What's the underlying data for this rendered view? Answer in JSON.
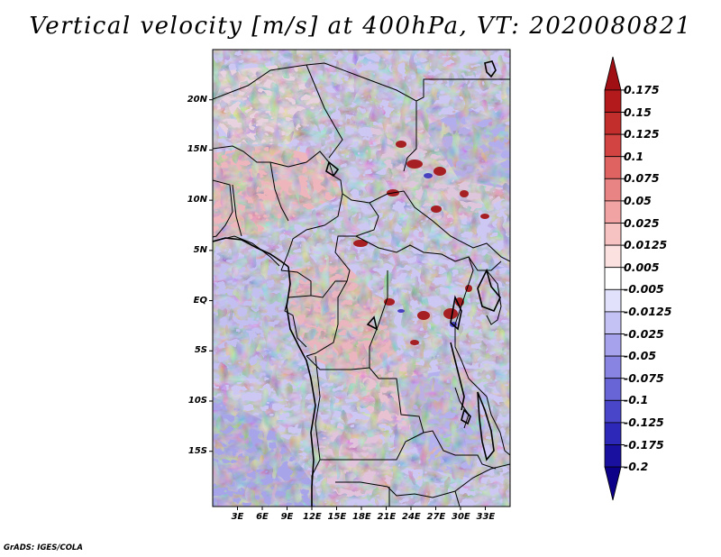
{
  "title": "Vertical velocity [m/s] at 400hPa, VT: 2020080821",
  "footer": "GrADS: IGES/COLA",
  "map": {
    "lon_range": [
      0,
      36
    ],
    "lat_range": [
      -20.5,
      25
    ],
    "lon_tick_labels": [
      "3E",
      "6E",
      "9E",
      "12E",
      "15E",
      "18E",
      "21E",
      "24E",
      "27E",
      "30E",
      "33E"
    ],
    "lon_tick_values": [
      3,
      6,
      9,
      12,
      15,
      18,
      21,
      24,
      27,
      30,
      33
    ],
    "lat_tick_labels": [
      "20N",
      "15N",
      "10N",
      "5N",
      "EQ",
      "5S",
      "10S",
      "15S"
    ],
    "lat_tick_values": [
      20,
      15,
      10,
      5,
      0,
      -5,
      -10,
      -15
    ]
  },
  "colorbar": {
    "labels": [
      "0.175",
      "0.15",
      "0.125",
      "0.1",
      "0.075",
      "0.05",
      "0.025",
      "0.0125",
      "0.005",
      "-0.005",
      "-0.0125",
      "-0.025",
      "-0.05",
      "-0.075",
      "-0.1",
      "-0.125",
      "-0.175",
      "-0.2"
    ],
    "colors": [
      "#a00f14",
      "#b21a1c",
      "#c22e2c",
      "#d14441",
      "#de6361",
      "#e88483",
      "#f0a3a2",
      "#f6c3c2",
      "#fbe2e1",
      "#ffffff",
      "#e2e1fb",
      "#c4c2f4",
      "#a6a3ec",
      "#8784e2",
      "#6865d7",
      "#4a46ca",
      "#2e28b8",
      "#1a10a0",
      "#0c0088"
    ]
  }
}
